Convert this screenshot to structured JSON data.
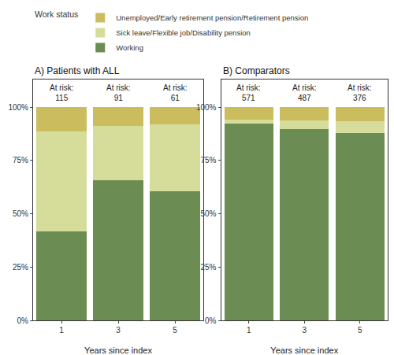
{
  "chart_data": [
    {
      "type": "bar",
      "title": "A) Patients with ALL",
      "stacked": true,
      "x_label": "Years since index",
      "categories": [
        "1",
        "3",
        "5"
      ],
      "legend": "top",
      "legend_title": "Work status",
      "series": [
        {
          "name": "Working",
          "color": "#6b8c52",
          "values": [
            41.7,
            65.9,
            60.7
          ]
        },
        {
          "name": "Sick leave/Flexible job/Disability pension",
          "color": "#d6dd9a",
          "values": [
            47.0,
            25.3,
            31.1
          ]
        },
        {
          "name": "Unemployed/Early retirement pension/Retirement pension",
          "color": "#cbbd5e",
          "values": [
            11.3,
            8.8,
            8.2
          ]
        }
      ],
      "at_risk": {
        "label": "At risk:",
        "values": [
          115,
          91,
          61
        ]
      },
      "ylim": [
        0,
        113
      ],
      "yticks": [
        {
          "value": 0,
          "label": "0%"
        },
        {
          "value": 25,
          "label": "25%"
        },
        {
          "value": 50,
          "label": "50%"
        },
        {
          "value": 75,
          "label": "75%"
        },
        {
          "value": 100,
          "label": "100%"
        }
      ],
      "grid": false
    },
    {
      "type": "bar",
      "title": "B) Comparators",
      "stacked": true,
      "x_label": "Years since index",
      "categories": [
        "1",
        "3",
        "5"
      ],
      "series": [
        {
          "name": "Working",
          "color": "#6b8c52",
          "values": [
            92.3,
            89.7,
            88.0
          ]
        },
        {
          "name": "Sick leave/Flexible job/Disability pension",
          "color": "#d6dd9a",
          "values": [
            1.9,
            4.1,
            5.6
          ]
        },
        {
          "name": "Unemployed/Early retirement pension/Retirement pension",
          "color": "#cbbd5e",
          "values": [
            5.8,
            6.2,
            6.4
          ]
        }
      ],
      "at_risk": {
        "label": "At risk:",
        "values": [
          571,
          487,
          376
        ]
      },
      "ylim": [
        0,
        113
      ],
      "yticks": [
        {
          "value": 0,
          "label": "0%"
        },
        {
          "value": 25,
          "label": "25%"
        },
        {
          "value": 50,
          "label": "50%"
        },
        {
          "value": 75,
          "label": "75%"
        },
        {
          "value": 100,
          "label": "100%"
        }
      ],
      "grid": false
    }
  ]
}
